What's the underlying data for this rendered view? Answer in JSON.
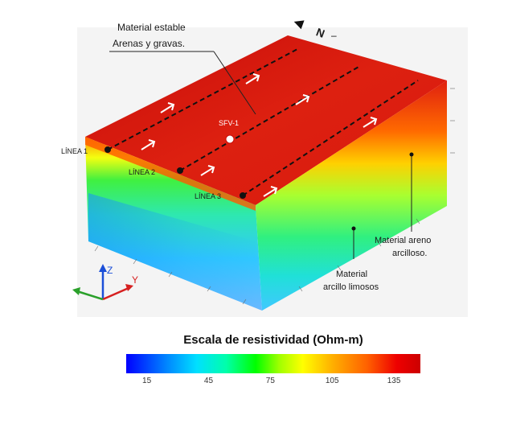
{
  "annotations": {
    "material_estable_line1": "Material estable",
    "material_estable_line2": "Arenas y gravas.",
    "sfv": "SFV-1",
    "linea1": "LÍNEA 1",
    "linea2": "LÍNEA 2",
    "linea3": "LÍNEA 3",
    "areno_line1": "Material areno",
    "areno_line2": "arcilloso.",
    "limoso_line1": "Material",
    "limoso_line2": "arcillo limosos"
  },
  "north_label": "N",
  "axes": {
    "z": "Z",
    "y": "Y"
  },
  "scale": {
    "title": "Escala de resistividad (Ohm-m)",
    "ticks": [
      "15",
      "45",
      "75",
      "105",
      "135"
    ]
  },
  "colors": {
    "surface_red": "#dd1a10",
    "line_dash": "#111111",
    "axis_z": "#1b4fd8",
    "axis_y": "#d62020",
    "axis_x": "#2aa02a"
  }
}
